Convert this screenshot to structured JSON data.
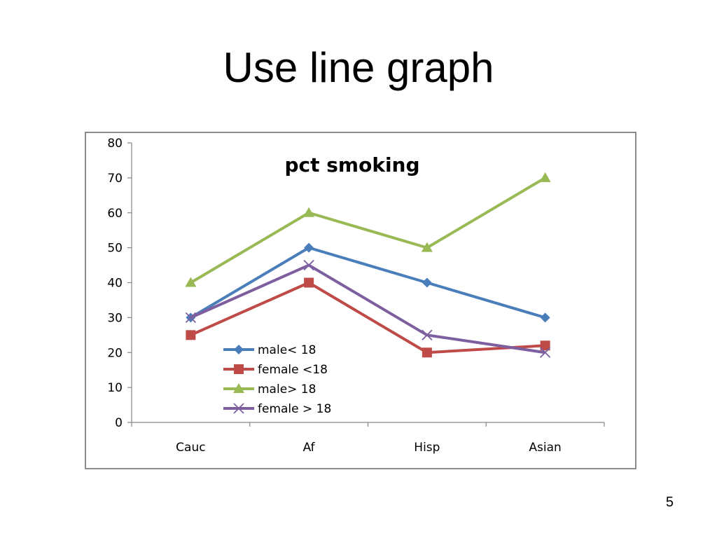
{
  "slide": {
    "title": "Use line graph",
    "page_number": "5"
  },
  "colors": {
    "male_under_18": "#4a7ebb",
    "female_under_18": "#be4b48",
    "male_over_18": "#98b954",
    "female_over_18": "#7d5fa0",
    "frame": "#8c8c8c",
    "axis": "#868686"
  },
  "chart_data": {
    "type": "line",
    "title": "pct smoking",
    "xlabel": "",
    "ylabel": "",
    "categories": [
      "Cauc",
      "Af",
      "Hisp",
      "Asian"
    ],
    "ylim": [
      0,
      80
    ],
    "yticks": [
      0,
      10,
      20,
      30,
      40,
      50,
      60,
      70,
      80
    ],
    "grid": false,
    "legend_position": "bottom-left inside plot",
    "series": [
      {
        "name": "male< 18",
        "values": [
          30,
          50,
          40,
          30
        ],
        "marker": "diamond",
        "color": "#4a7ebb"
      },
      {
        "name": "female <18",
        "values": [
          25,
          40,
          20,
          22
        ],
        "marker": "square",
        "color": "#be4b48"
      },
      {
        "name": "male> 18",
        "values": [
          40,
          60,
          50,
          70
        ],
        "marker": "triangle",
        "color": "#98b954"
      },
      {
        "name": "female > 18",
        "values": [
          30,
          45,
          25,
          20
        ],
        "marker": "x",
        "color": "#7d5fa0"
      }
    ]
  }
}
